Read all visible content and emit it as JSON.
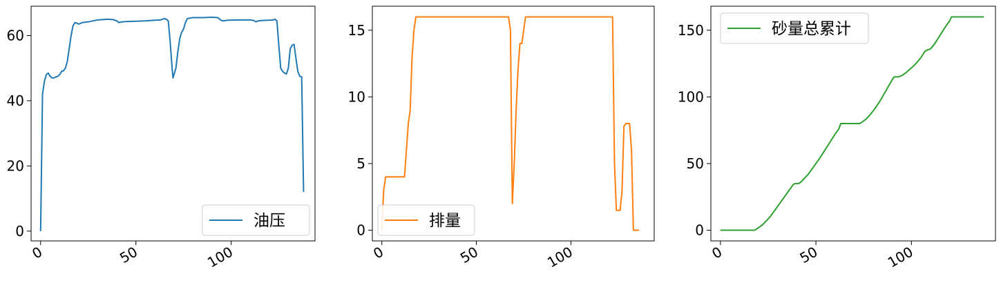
{
  "chart_data": [
    {
      "type": "line",
      "title": "",
      "xlabel": "",
      "ylabel": "",
      "xlim": [
        -5,
        144
      ],
      "ylim": [
        -3,
        69
      ],
      "x_ticks": [
        0,
        50,
        100
      ],
      "x_tick_labels": [
        "0",
        "50",
        "100"
      ],
      "y_ticks": [
        0,
        20,
        40,
        60
      ],
      "y_tick_labels": [
        "0",
        "20",
        "40",
        "60"
      ],
      "legend": "lower-right",
      "grid": false,
      "series": [
        {
          "name": "油压",
          "color": "#1f77b4",
          "points": [
            [
              0,
              0
            ],
            [
              1,
              42
            ],
            [
              2,
              46
            ],
            [
              3,
              48
            ],
            [
              4,
              48.5
            ],
            [
              5,
              47.5
            ],
            [
              6,
              47
            ],
            [
              7,
              47
            ],
            [
              8,
              47.3
            ],
            [
              9,
              47.5
            ],
            [
              10,
              48
            ],
            [
              11,
              49
            ],
            [
              12,
              49.2
            ],
            [
              13,
              50
            ],
            [
              14,
              52
            ],
            [
              15,
              56
            ],
            [
              16,
              60
            ],
            [
              17,
              63
            ],
            [
              18,
              64
            ],
            [
              19,
              63.8
            ],
            [
              20,
              63.5
            ],
            [
              22,
              64
            ],
            [
              25,
              64.2
            ],
            [
              30,
              64.8
            ],
            [
              35,
              65
            ],
            [
              38,
              64.9
            ],
            [
              40,
              64.5
            ],
            [
              41,
              64
            ],
            [
              43,
              64.2
            ],
            [
              45,
              64.3
            ],
            [
              50,
              64.4
            ],
            [
              55,
              64.5
            ],
            [
              60,
              64.7
            ],
            [
              63,
              64.8
            ],
            [
              65,
              65.2
            ],
            [
              66,
              65
            ],
            [
              67,
              64.5
            ],
            [
              68,
              58
            ],
            [
              69,
              50
            ],
            [
              69.5,
              47
            ],
            [
              70,
              48
            ],
            [
              71,
              50
            ],
            [
              72,
              55
            ],
            [
              73,
              59
            ],
            [
              74,
              61
            ],
            [
              75,
              62
            ],
            [
              76,
              64
            ],
            [
              77,
              65.2
            ],
            [
              80,
              65.5
            ],
            [
              85,
              65.5
            ],
            [
              90,
              65.6
            ],
            [
              93,
              65.5
            ],
            [
              94,
              65
            ],
            [
              95,
              64.6
            ],
            [
              96,
              64.5
            ],
            [
              98,
              64.7
            ],
            [
              105,
              64.8
            ],
            [
              110,
              64.8
            ],
            [
              112,
              64.6
            ],
            [
              113,
              64.2
            ],
            [
              114,
              64.5
            ],
            [
              116,
              64.6
            ],
            [
              120,
              64.7
            ],
            [
              122,
              64.8
            ],
            [
              123,
              65
            ],
            [
              124,
              64.5
            ],
            [
              125,
              57
            ],
            [
              126,
              50
            ],
            [
              127,
              49
            ],
            [
              128,
              48.5
            ],
            [
              129,
              48.2
            ],
            [
              130,
              50
            ],
            [
              131,
              56
            ],
            [
              132,
              57
            ],
            [
              133,
              57.3
            ],
            [
              134,
              53
            ],
            [
              135,
              49
            ],
            [
              136,
              47.5
            ],
            [
              137,
              47.3
            ],
            [
              138,
              12
            ]
          ]
        }
      ]
    },
    {
      "type": "line",
      "title": "",
      "xlabel": "",
      "ylabel": "",
      "xlim": [
        -5,
        144
      ],
      "ylim": [
        -0.8,
        16.8
      ],
      "x_ticks": [
        0,
        50,
        100
      ],
      "x_tick_labels": [
        "0",
        "50",
        "100"
      ],
      "y_ticks": [
        0,
        5,
        10,
        15
      ],
      "y_tick_labels": [
        "0",
        "5",
        "10",
        "15"
      ],
      "legend": "lower-left",
      "grid": false,
      "series": [
        {
          "name": "排量",
          "color": "#ff7f0e",
          "points": [
            [
              0,
              0
            ],
            [
              1,
              3
            ],
            [
              2,
              4
            ],
            [
              3,
              4
            ],
            [
              5,
              4
            ],
            [
              8,
              4
            ],
            [
              11,
              4
            ],
            [
              12,
              4
            ],
            [
              13,
              6
            ],
            [
              14,
              8
            ],
            [
              15,
              9
            ],
            [
              16,
              13
            ],
            [
              17,
              15
            ],
            [
              18,
              16
            ],
            [
              20,
              16
            ],
            [
              30,
              16
            ],
            [
              40,
              16
            ],
            [
              50,
              16
            ],
            [
              60,
              16
            ],
            [
              66,
              16
            ],
            [
              67,
              16
            ],
            [
              68,
              15
            ],
            [
              69,
              2
            ],
            [
              70,
              5
            ],
            [
              71,
              9
            ],
            [
              72,
              12
            ],
            [
              73,
              14
            ],
            [
              74,
              14
            ],
            [
              75,
              15
            ],
            [
              76,
              16
            ],
            [
              80,
              16
            ],
            [
              90,
              16
            ],
            [
              100,
              16
            ],
            [
              110,
              16
            ],
            [
              120,
              16
            ],
            [
              122,
              16
            ],
            [
              123,
              5
            ],
            [
              124,
              1.5
            ],
            [
              125,
              1.5
            ],
            [
              126,
              1.5
            ],
            [
              127,
              3
            ],
            [
              128,
              7.8
            ],
            [
              129,
              8
            ],
            [
              130,
              8
            ],
            [
              131,
              8
            ],
            [
              132,
              6
            ],
            [
              133,
              0
            ],
            [
              134,
              0
            ],
            [
              135,
              0
            ],
            [
              136,
              0
            ]
          ]
        }
      ]
    },
    {
      "type": "line",
      "title": "",
      "xlabel": "",
      "ylabel": "",
      "xlim": [
        -5,
        144
      ],
      "ylim": [
        -8,
        168
      ],
      "x_ticks": [
        0,
        50,
        100
      ],
      "x_tick_labels": [
        "0",
        "50",
        "100"
      ],
      "y_ticks": [
        0,
        50,
        100,
        150
      ],
      "y_tick_labels": [
        "0",
        "50",
        "100",
        "150"
      ],
      "legend": "upper-left",
      "grid": false,
      "series": [
        {
          "name": "砂量总累计",
          "color": "#2ca02c",
          "points": [
            [
              0,
              0
            ],
            [
              5,
              0
            ],
            [
              10,
              0
            ],
            [
              15,
              0
            ],
            [
              18,
              0
            ],
            [
              19,
              1
            ],
            [
              20,
              2
            ],
            [
              22,
              4
            ],
            [
              24,
              7
            ],
            [
              26,
              10
            ],
            [
              28,
              14
            ],
            [
              30,
              18
            ],
            [
              32,
              22
            ],
            [
              34,
              26
            ],
            [
              36,
              30
            ],
            [
              38,
              34
            ],
            [
              39,
              35
            ],
            [
              40,
              35
            ],
            [
              41,
              35
            ],
            [
              42,
              36
            ],
            [
              44,
              39
            ],
            [
              46,
              42
            ],
            [
              48,
              46
            ],
            [
              50,
              50
            ],
            [
              52,
              54
            ],
            [
              54,
              58.5
            ],
            [
              56,
              63
            ],
            [
              58,
              67.5
            ],
            [
              60,
              72
            ],
            [
              62,
              76
            ],
            [
              63,
              80
            ],
            [
              65,
              80
            ],
            [
              70,
              80
            ],
            [
              73,
              80
            ],
            [
              74,
              81
            ],
            [
              76,
              83
            ],
            [
              78,
              86
            ],
            [
              80,
              89.5
            ],
            [
              82,
              93.5
            ],
            [
              84,
              98
            ],
            [
              86,
              103
            ],
            [
              88,
              108
            ],
            [
              90,
              113
            ],
            [
              91,
              115
            ],
            [
              93,
              115
            ],
            [
              95,
              116
            ],
            [
              97,
              118
            ],
            [
              99,
              120.5
            ],
            [
              101,
              123
            ],
            [
              103,
              126
            ],
            [
              105,
              129.5
            ],
            [
              107,
              134
            ],
            [
              108,
              135
            ],
            [
              110,
              136
            ],
            [
              112,
              139.5
            ],
            [
              114,
              144
            ],
            [
              116,
              148.5
            ],
            [
              118,
              153
            ],
            [
              120,
              157
            ],
            [
              121,
              160
            ],
            [
              125,
              160
            ],
            [
              130,
              160
            ],
            [
              135,
              160
            ],
            [
              138,
              160
            ]
          ]
        }
      ]
    }
  ]
}
